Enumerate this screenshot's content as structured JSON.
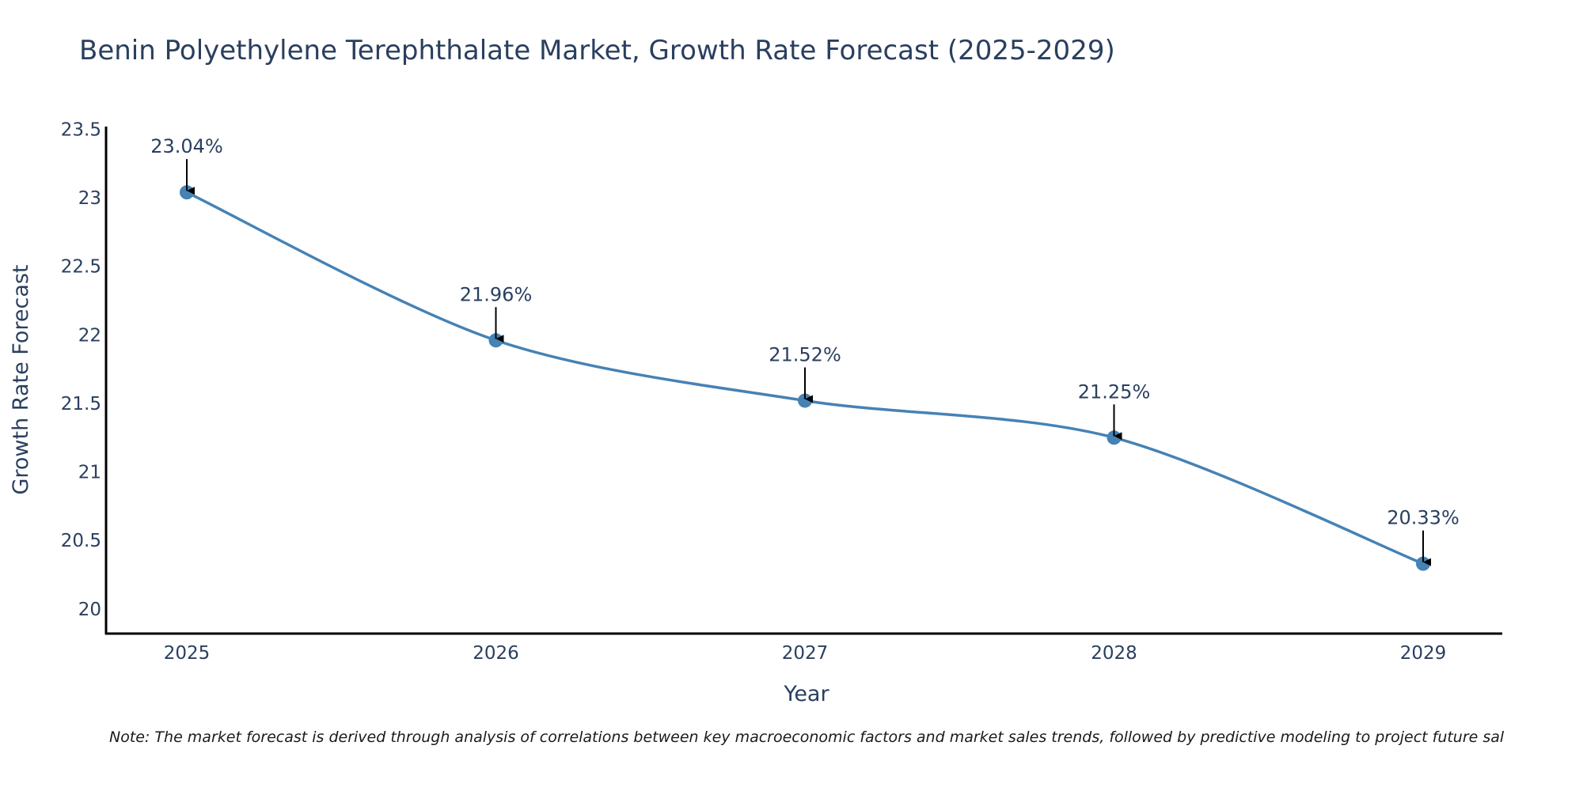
{
  "chart_data": {
    "type": "line",
    "title": "Benin Polyethylene Terephthalate Market, Growth Rate Forecast (2025-2029)",
    "xlabel": "Year",
    "ylabel": "Growth Rate Forecast",
    "categories": [
      "2025",
      "2026",
      "2027",
      "2028",
      "2029"
    ],
    "values": [
      23.04,
      21.96,
      21.52,
      21.25,
      20.33
    ],
    "data_labels": [
      "23.04%",
      "21.96%",
      "21.52%",
      "21.25%",
      "20.33%"
    ],
    "y_ticks": [
      "20",
      "20.5",
      "21",
      "21.5",
      "22",
      "22.5",
      "23",
      "23.5"
    ],
    "ylim": [
      19.82,
      23.52
    ],
    "grid": false,
    "line_color": "#4682b4",
    "note": "Note: The market forecast is derived through analysis of correlations between key macroeconomic factors and market sales trends, followed by predictive modeling to project future sal"
  }
}
